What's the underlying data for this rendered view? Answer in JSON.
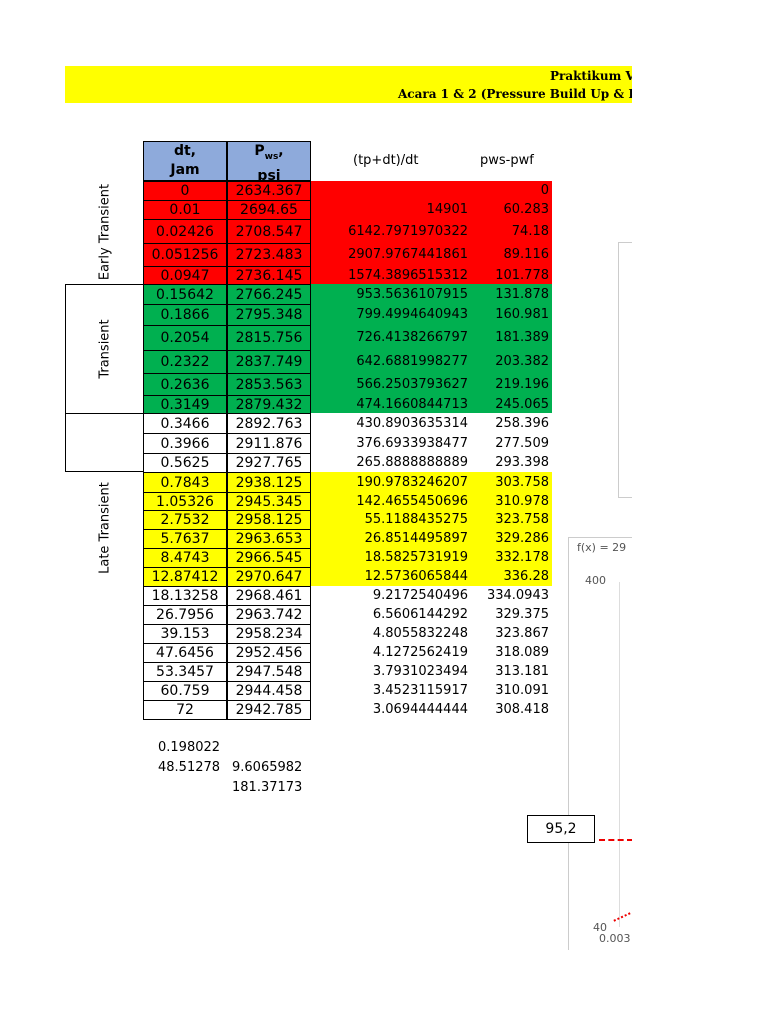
{
  "header": {
    "title": "Praktikum V",
    "subtitle": "Acara 1 & 2 (Pressure Build Up & I"
  },
  "table": {
    "headers": [
      {
        "line1": "dt,",
        "line2": "Jam"
      },
      {
        "line1": "P",
        "sub": "ws",
        "comma": ",",
        "line2": "psi"
      },
      {
        "line1": "(tp+dt)/dt"
      },
      {
        "line1": "pws-pwf"
      }
    ],
    "rows": [
      [
        "0",
        "2634.367",
        null,
        "0"
      ],
      [
        "0.01",
        "2694.65",
        "14901",
        "60.283"
      ],
      [
        "0.02426",
        "2708.547",
        "6142.7971970322",
        "74.18"
      ],
      [
        "0.051256",
        "2723.483",
        "2907.9767441861",
        "89.116"
      ],
      [
        "0.0947",
        "2736.145",
        "1574.3896515312",
        "101.778"
      ],
      [
        "0.15642",
        "2766.245",
        "953.5636107915",
        "131.878"
      ],
      [
        "0.1866",
        "2795.348",
        "799.4994640943",
        "160.981"
      ],
      [
        "0.2054",
        "2815.756",
        "726.4138266797",
        "181.389"
      ],
      [
        "0.2322",
        "2837.749",
        "642.6881998277",
        "203.382"
      ],
      [
        "0.2636",
        "2853.563",
        "566.2503793627",
        "219.196"
      ],
      [
        "0.3149",
        "2879.432",
        "474.1660844713",
        "245.065"
      ],
      [
        "0.3466",
        "2892.763",
        "430.8903635314",
        "258.396"
      ],
      [
        "0.3966",
        "2911.876",
        "376.6933938477",
        "277.509"
      ],
      [
        "0.5625",
        "2927.765",
        "265.8888888889",
        "293.398"
      ],
      [
        "0.7843",
        "2938.125",
        "190.9783246207",
        "303.758"
      ],
      [
        "1.05326",
        "2945.345",
        "142.4655450696",
        "310.978"
      ],
      [
        "2.7532",
        "2958.125",
        "55.1188435275",
        "323.758"
      ],
      [
        "5.7637",
        "2963.653",
        "26.8514495897",
        "329.286"
      ],
      [
        "8.4743",
        "2966.545",
        "18.5825731919",
        "332.178"
      ],
      [
        "12.87412",
        "2970.647",
        "12.5736065844",
        "336.28"
      ],
      [
        "18.13258",
        "2968.461",
        "9.2172540496",
        "334.0943"
      ],
      [
        "26.7956",
        "2963.742",
        "6.5606144292",
        "329.375"
      ],
      [
        "39.153",
        "2958.234",
        "4.8055832248",
        "323.867"
      ],
      [
        "47.6456",
        "2952.456",
        "4.1272562419",
        "318.089"
      ],
      [
        "53.3457",
        "2947.548",
        "3.7931023494",
        "313.181"
      ],
      [
        "60.759",
        "2944.458",
        "3.4523115917",
        "310.091"
      ],
      [
        "72",
        "2942.785",
        "3.0694444444",
        "308.418"
      ]
    ]
  },
  "regions": {
    "early": "Early Transient",
    "transient": "Transient",
    "late": "Late Transient"
  },
  "extras": {
    "a": "0.198022",
    "b": "48.51278",
    "c": "9.6065982",
    "d": "181.37173"
  },
  "chart_fragment": {
    "formula": "f(x) = 29",
    "ytop": "400",
    "ybottom": "40",
    "xfirst": "0.003",
    "box": "95,2"
  }
}
